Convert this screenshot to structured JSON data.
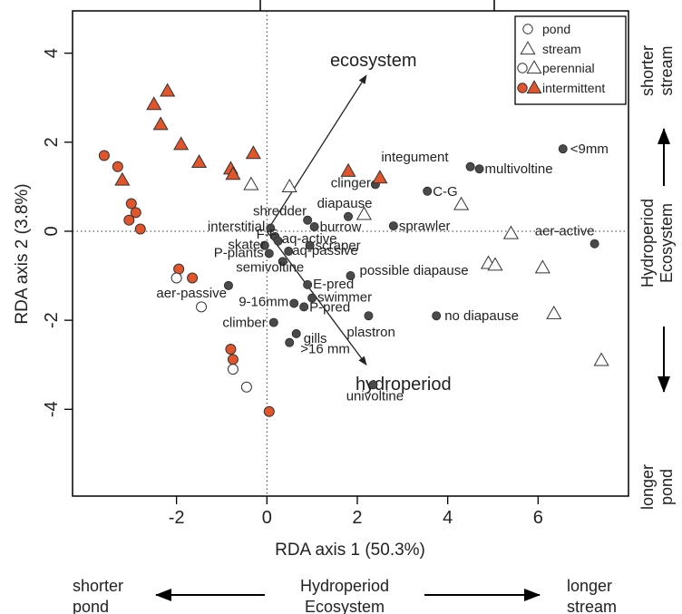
{
  "chart_data": {
    "type": "scatter",
    "xlabel": "RDA axis 1 (50.3%)",
    "ylabel": "RDA axis 2 (3.8%)",
    "xlim": [
      -4.3,
      8.0
    ],
    "ylim": [
      -5.95,
      4.95
    ],
    "xticks": [
      "-2",
      "0",
      "2",
      "4",
      "6"
    ],
    "xtick_values": [
      -2,
      0,
      2,
      4,
      6
    ],
    "yticks": [
      "-4",
      "-2",
      "0",
      "2",
      "4"
    ],
    "ytick_values": [
      -4,
      -2,
      0,
      2,
      4
    ],
    "reference_lines": {
      "x": 0,
      "y": 0,
      "style": "dotted"
    },
    "legend": {
      "placement": "top-right",
      "entries": [
        {
          "label": "pond",
          "symbol": "circle"
        },
        {
          "label": "stream",
          "symbol": "triangle"
        },
        {
          "label": "perennial",
          "symbol": "circle+triangle",
          "color": "#ffffff"
        },
        {
          "label": "intermittent",
          "symbol": "circle+triangle",
          "color": "#e0552b"
        }
      ]
    },
    "colors": {
      "intermittent": "#e0552b",
      "perennial": "#ffffff",
      "trait": "#4a4a4a",
      "outline": "#333333"
    },
    "vectors": [
      {
        "label": "ecosystem",
        "x": 2.2,
        "y": 3.5
      },
      {
        "label": "hydroperiod",
        "x": 2.2,
        "y": -3.0
      }
    ],
    "sites": [
      {
        "x": -3.6,
        "y": 1.7,
        "shape": "circle",
        "hydro": "intermittent"
      },
      {
        "x": -3.3,
        "y": 1.45,
        "shape": "circle",
        "hydro": "intermittent"
      },
      {
        "x": -3.0,
        "y": 0.62,
        "shape": "circle",
        "hydro": "intermittent"
      },
      {
        "x": -2.9,
        "y": 0.42,
        "shape": "circle",
        "hydro": "intermittent"
      },
      {
        "x": -3.05,
        "y": 0.25,
        "shape": "circle",
        "hydro": "intermittent"
      },
      {
        "x": -2.8,
        "y": 0.05,
        "shape": "circle",
        "hydro": "intermittent"
      },
      {
        "x": -1.95,
        "y": -0.85,
        "shape": "circle",
        "hydro": "intermittent"
      },
      {
        "x": -2.0,
        "y": -1.05,
        "shape": "circle",
        "hydro": "perennial"
      },
      {
        "x": -1.65,
        "y": -1.05,
        "shape": "circle",
        "hydro": "intermittent"
      },
      {
        "x": -1.45,
        "y": -1.7,
        "shape": "circle",
        "hydro": "perennial"
      },
      {
        "x": -0.8,
        "y": -2.65,
        "shape": "circle",
        "hydro": "intermittent"
      },
      {
        "x": -0.75,
        "y": -2.88,
        "shape": "circle",
        "hydro": "intermittent"
      },
      {
        "x": -0.75,
        "y": -3.1,
        "shape": "circle",
        "hydro": "perennial"
      },
      {
        "x": -0.45,
        "y": -3.5,
        "shape": "circle",
        "hydro": "perennial"
      },
      {
        "x": 0.05,
        "y": -4.05,
        "shape": "circle",
        "hydro": "intermittent"
      },
      {
        "x": -2.2,
        "y": 3.15,
        "shape": "triangle",
        "hydro": "intermittent"
      },
      {
        "x": -2.5,
        "y": 2.85,
        "shape": "triangle",
        "hydro": "intermittent"
      },
      {
        "x": -2.35,
        "y": 2.4,
        "shape": "triangle",
        "hydro": "intermittent"
      },
      {
        "x": -1.9,
        "y": 1.95,
        "shape": "triangle",
        "hydro": "intermittent"
      },
      {
        "x": -1.5,
        "y": 1.55,
        "shape": "triangle",
        "hydro": "intermittent"
      },
      {
        "x": -0.8,
        "y": 1.4,
        "shape": "triangle",
        "hydro": "intermittent"
      },
      {
        "x": -0.75,
        "y": 1.28,
        "shape": "triangle",
        "hydro": "intermittent"
      },
      {
        "x": -0.3,
        "y": 1.75,
        "shape": "triangle",
        "hydro": "intermittent"
      },
      {
        "x": -3.2,
        "y": 1.15,
        "shape": "triangle",
        "hydro": "intermittent"
      },
      {
        "x": -0.35,
        "y": 1.05,
        "shape": "triangle",
        "hydro": "perennial"
      },
      {
        "x": 0.5,
        "y": 1.0,
        "shape": "triangle",
        "hydro": "perennial"
      },
      {
        "x": 1.8,
        "y": 1.35,
        "shape": "triangle",
        "hydro": "intermittent"
      },
      {
        "x": 2.5,
        "y": 1.2,
        "shape": "triangle",
        "hydro": "intermittent"
      },
      {
        "x": 2.15,
        "y": 0.38,
        "shape": "triangle",
        "hydro": "perennial"
      },
      {
        "x": 4.3,
        "y": 0.6,
        "shape": "triangle",
        "hydro": "perennial"
      },
      {
        "x": 5.4,
        "y": -0.05,
        "shape": "triangle",
        "hydro": "perennial"
      },
      {
        "x": 4.9,
        "y": -0.72,
        "shape": "triangle",
        "hydro": "perennial"
      },
      {
        "x": 5.05,
        "y": -0.76,
        "shape": "triangle",
        "hydro": "perennial"
      },
      {
        "x": 6.1,
        "y": -0.82,
        "shape": "triangle",
        "hydro": "perennial"
      },
      {
        "x": 6.35,
        "y": -1.85,
        "shape": "triangle",
        "hydro": "perennial"
      },
      {
        "x": 7.4,
        "y": -2.9,
        "shape": "triangle",
        "hydro": "perennial"
      }
    ],
    "traits": [
      {
        "label": "<9mm",
        "x": 6.55,
        "y": 1.85
      },
      {
        "label": "integument",
        "x": 4.5,
        "y": 1.45
      },
      {
        "label": "multivoltine",
        "x": 4.7,
        "y": 1.4
      },
      {
        "label": "C-G",
        "x": 3.55,
        "y": 0.9
      },
      {
        "label": "clinger",
        "x": 2.4,
        "y": 1.05
      },
      {
        "label": "diapause",
        "x": 1.8,
        "y": 0.33
      },
      {
        "label": "sprawler",
        "x": 2.8,
        "y": 0.12
      },
      {
        "label": "aer-active",
        "x": 7.25,
        "y": -0.28
      },
      {
        "label": "shredder",
        "x": 0.9,
        "y": 0.25
      },
      {
        "label": "burrow",
        "x": 1.05,
        "y": 0.1
      },
      {
        "label": "interstitial",
        "x": 0.08,
        "y": 0.07
      },
      {
        "label": "F-F",
        "x": 0.18,
        "y": -0.12
      },
      {
        "label": "aq-active",
        "x": 0.25,
        "y": -0.22
      },
      {
        "label": "skater",
        "x": -0.05,
        "y": -0.32
      },
      {
        "label": "scraper",
        "x": 0.95,
        "y": -0.32
      },
      {
        "label": "P-plants",
        "x": 0.05,
        "y": -0.5
      },
      {
        "label": "aq-passive",
        "x": 0.48,
        "y": -0.45
      },
      {
        "label": "semivoltine",
        "x": 0.35,
        "y": -0.68
      },
      {
        "label": "possible diapause",
        "x": 1.85,
        "y": -1.0
      },
      {
        "label": "aer-passive",
        "x": -0.85,
        "y": -1.22
      },
      {
        "label": "E-pred",
        "x": 0.9,
        "y": -1.2
      },
      {
        "label": "swimmer",
        "x": 1.0,
        "y": -1.5
      },
      {
        "label": "9-16mm",
        "x": 0.6,
        "y": -1.62
      },
      {
        "label": "P-pred",
        "x": 0.82,
        "y": -1.7
      },
      {
        "label": "plastron",
        "x": 2.25,
        "y": -1.9
      },
      {
        "label": "no diapause",
        "x": 3.75,
        "y": -1.9
      },
      {
        "label": "climber",
        "x": 0.15,
        "y": -2.05
      },
      {
        "label": "gills",
        "x": 0.65,
        "y": -2.3
      },
      {
        "label": ">16 mm",
        "x": 0.5,
        "y": -2.5
      },
      {
        "label": "univoltine",
        "x": 2.35,
        "y": -3.45
      }
    ]
  },
  "side_annotations": {
    "right_top": [
      "shorter",
      "stream"
    ],
    "right_middle": [
      "Hydroperiod",
      "Ecosystem"
    ],
    "right_bottom": [
      "longer",
      "pond"
    ],
    "bottom_left": [
      "shorter",
      "pond"
    ],
    "bottom_middle": [
      "Hydroperiod",
      "Ecosystem"
    ],
    "bottom_right": [
      "longer",
      "stream"
    ]
  }
}
